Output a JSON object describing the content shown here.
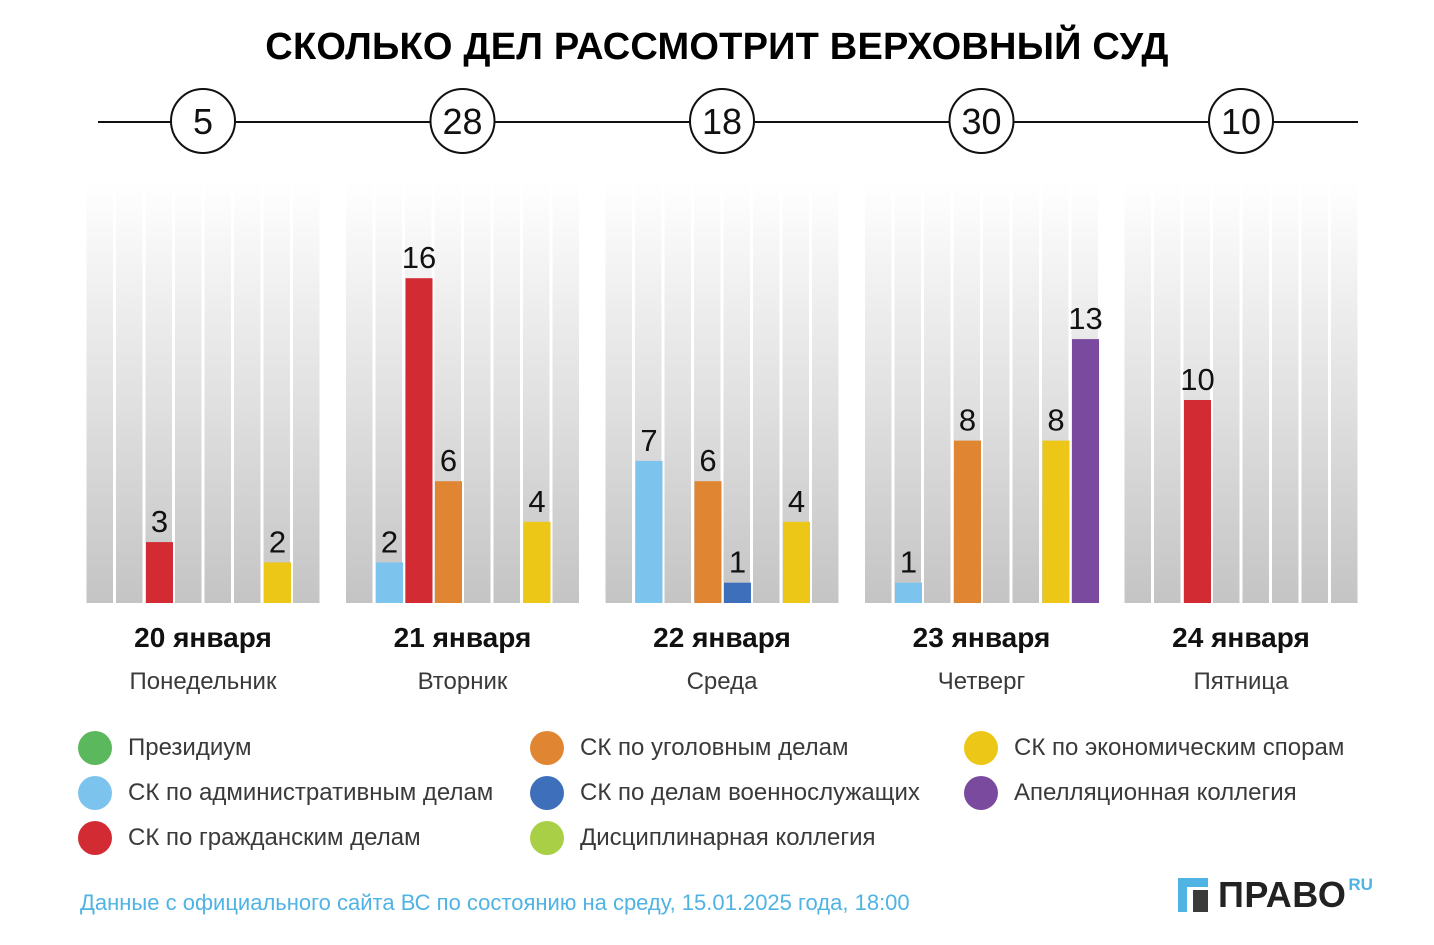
{
  "title": "СКОЛЬКО ДЕЛ РАССМОТРИТ ВЕРХОВНЫЙ СУД",
  "chart_data": {
    "type": "bar",
    "title": "СКОЛЬКО ДЕЛ РАССМОТРИТ ВЕРХОВНЫЙ СУД",
    "ylim": [
      0,
      20
    ],
    "grid": true,
    "legend_position": "bottom",
    "series": [
      {
        "name": "Президиум",
        "color": "#5cb85c"
      },
      {
        "name": "СК по административным делам",
        "color": "#7cc3ee"
      },
      {
        "name": "СК по гражданским делам",
        "color": "#d22b34"
      },
      {
        "name": "СК по уголовным делам",
        "color": "#e08633"
      },
      {
        "name": "СК по делам военнослужащих",
        "color": "#3d6fba"
      },
      {
        "name": "Дисциплинарная коллегия",
        "color": "#a8cf45"
      },
      {
        "name": "СК по экономическим спорам",
        "color": "#ecc717"
      },
      {
        "name": "Апелляционная коллегия",
        "color": "#7a4a9e"
      }
    ],
    "days": [
      {
        "date": "20 января",
        "weekday": "Понедельник",
        "total": "5",
        "values": [
          0,
          0,
          3,
          0,
          0,
          0,
          2,
          0
        ]
      },
      {
        "date": "21 января",
        "weekday": "Вторник",
        "total": "28",
        "values": [
          0,
          2,
          16,
          6,
          0,
          0,
          4,
          0
        ]
      },
      {
        "date": "22 января",
        "weekday": "Среда",
        "total": "18",
        "values": [
          0,
          7,
          0,
          6,
          1,
          0,
          4,
          0
        ]
      },
      {
        "date": "23 января",
        "weekday": "Четверг",
        "total": "30",
        "values": [
          0,
          1,
          0,
          8,
          0,
          0,
          8,
          13
        ]
      },
      {
        "date": "24 января",
        "weekday": "Пятница",
        "total": "10",
        "values": [
          0,
          0,
          10,
          0,
          0,
          0,
          0,
          0
        ]
      }
    ]
  },
  "footnote": "Данные с официального сайта ВС по состоянию на среду, 15.01.2025 года, 18:00",
  "logo": {
    "text": "ПРАВО",
    "suffix": "RU"
  }
}
